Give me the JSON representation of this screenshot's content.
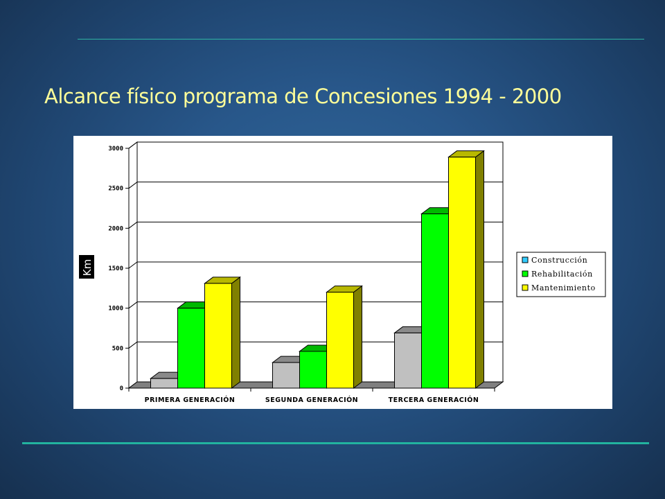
{
  "slide": {
    "title": "Alcance físico programa de Concesiones 1994 - 2000"
  },
  "chart_data": {
    "type": "bar",
    "ylabel": "Km",
    "ylim": [
      0,
      3000
    ],
    "yticks": [
      0,
      500,
      1000,
      1500,
      2000,
      2500,
      3000
    ],
    "grid": true,
    "legend_position": "right",
    "categories": [
      "PRIMERA GENERACIÓN",
      "SEGUNDA GENERACIÓN",
      "TERCERA GENERACIÓN"
    ],
    "series": [
      {
        "name": "Construcción",
        "values": [
          120,
          320,
          690
        ],
        "color": "#c0c0c0"
      },
      {
        "name": "Rehabilitación",
        "values": [
          1000,
          460,
          2180
        ],
        "color": "#00ff00"
      },
      {
        "name": "Mantenimiento",
        "values": [
          1310,
          1200,
          2890
        ],
        "color": "#ffff00"
      }
    ],
    "legend_swatch_colors": [
      "#33ccff",
      "#00ff00",
      "#ffff00"
    ]
  }
}
